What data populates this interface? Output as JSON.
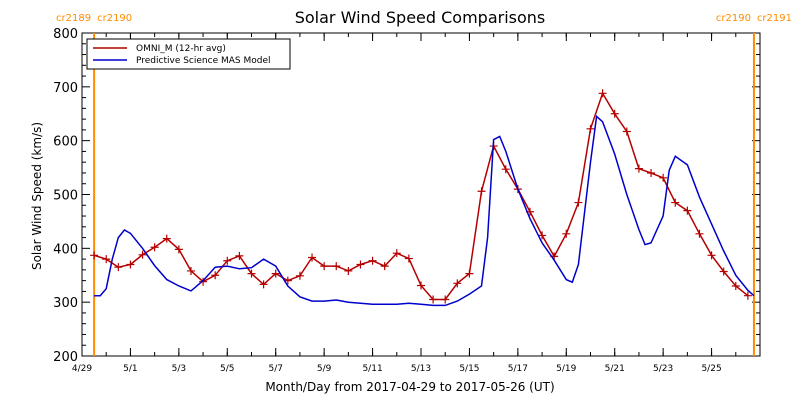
{
  "chart_data": {
    "type": "line",
    "title": "Solar Wind Speed Comparisons",
    "xlabel": "Month/Day from 2017-04-29 to 2017-05-26 (UT)",
    "ylabel": "Solar Wind Speed (km/s)",
    "ylim": [
      200,
      800
    ],
    "xlim": [
      "2017-04-29",
      "2017-05-27"
    ],
    "y_ticks": [
      "200",
      "300",
      "400",
      "500",
      "600",
      "700",
      "800"
    ],
    "x_ticks": [
      {
        "label": "4/29",
        "date": "2017-04-29"
      },
      {
        "label": "5/1",
        "date": "2017-05-01"
      },
      {
        "label": "5/3",
        "date": "2017-05-03"
      },
      {
        "label": "5/5",
        "date": "2017-05-05"
      },
      {
        "label": "5/7",
        "date": "2017-05-07"
      },
      {
        "label": "5/9",
        "date": "2017-05-09"
      },
      {
        "label": "5/11",
        "date": "2017-05-11"
      },
      {
        "label": "5/13",
        "date": "2017-05-13"
      },
      {
        "label": "5/15",
        "date": "2017-05-15"
      },
      {
        "label": "5/17",
        "date": "2017-05-17"
      },
      {
        "label": "5/19",
        "date": "2017-05-19"
      },
      {
        "label": "5/21",
        "date": "2017-05-21"
      },
      {
        "label": "5/23",
        "date": "2017-05-23"
      },
      {
        "label": "5/25",
        "date": "2017-05-25"
      }
    ],
    "legend_position": "top-left",
    "carrington_markers": [
      {
        "date": "2017-04-29 12:00",
        "label_left": "cr2189",
        "label_right": "cr2190"
      },
      {
        "date": "2017-05-26 18:00",
        "label_left": "cr2190",
        "label_right": "cr2191"
      }
    ],
    "series": [
      {
        "name": "OMNI_M (12-hr avg)",
        "color": "#b40000",
        "marker": "plus",
        "points": [
          [
            "2017-04-29 12:00",
            387
          ],
          [
            "2017-04-30 00:00",
            380
          ],
          [
            "2017-04-30 12:00",
            365
          ],
          [
            "2017-05-01 00:00",
            370
          ],
          [
            "2017-05-01 12:00",
            388
          ],
          [
            "2017-05-02 00:00",
            402
          ],
          [
            "2017-05-02 12:00",
            418
          ],
          [
            "2017-05-03 00:00",
            398
          ],
          [
            "2017-05-03 12:00",
            358
          ],
          [
            "2017-05-04 00:00",
            338
          ],
          [
            "2017-05-04 12:00",
            350
          ],
          [
            "2017-05-05 00:00",
            377
          ],
          [
            "2017-05-05 12:00",
            386
          ],
          [
            "2017-05-06 00:00",
            353
          ],
          [
            "2017-05-06 12:00",
            333
          ],
          [
            "2017-05-07 00:00",
            353
          ],
          [
            "2017-05-07 12:00",
            340
          ],
          [
            "2017-05-08 00:00",
            349
          ],
          [
            "2017-05-08 12:00",
            383
          ],
          [
            "2017-05-09 00:00",
            367
          ],
          [
            "2017-05-09 12:00",
            367
          ],
          [
            "2017-05-10 00:00",
            358
          ],
          [
            "2017-05-10 12:00",
            370
          ],
          [
            "2017-05-11 00:00",
            377
          ],
          [
            "2017-05-11 12:00",
            367
          ],
          [
            "2017-05-12 00:00",
            391
          ],
          [
            "2017-05-12 12:00",
            381
          ],
          [
            "2017-05-13 00:00",
            331
          ],
          [
            "2017-05-13 12:00",
            305
          ],
          [
            "2017-05-14 00:00",
            305
          ],
          [
            "2017-05-14 12:00",
            335
          ],
          [
            "2017-05-15 00:00",
            353
          ],
          [
            "2017-05-15 12:00",
            506
          ],
          [
            "2017-05-16 00:00",
            590
          ],
          [
            "2017-05-16 12:00",
            547
          ],
          [
            "2017-05-17 00:00",
            510
          ],
          [
            "2017-05-17 12:00",
            468
          ],
          [
            "2017-05-18 00:00",
            424
          ],
          [
            "2017-05-18 12:00",
            385
          ],
          [
            "2017-05-19 00:00",
            427
          ],
          [
            "2017-05-19 12:00",
            485
          ],
          [
            "2017-05-20 00:00",
            622
          ],
          [
            "2017-05-20 12:00",
            688
          ],
          [
            "2017-05-21 00:00",
            650
          ],
          [
            "2017-05-21 12:00",
            617
          ],
          [
            "2017-05-22 00:00",
            548
          ],
          [
            "2017-05-22 12:00",
            540
          ],
          [
            "2017-05-23 00:00",
            531
          ],
          [
            "2017-05-23 12:00",
            485
          ],
          [
            "2017-05-24 00:00",
            470
          ],
          [
            "2017-05-24 12:00",
            427
          ],
          [
            "2017-05-25 00:00",
            387
          ],
          [
            "2017-05-25 12:00",
            357
          ],
          [
            "2017-05-26 00:00",
            330
          ],
          [
            "2017-05-26 12:00",
            312
          ]
        ]
      },
      {
        "name": "Predictive Science MAS Model",
        "color": "#0000cc",
        "marker": "none",
        "points": [
          [
            "2017-04-29 12:00",
            312
          ],
          [
            "2017-04-29 18:00",
            312
          ],
          [
            "2017-04-30 00:00",
            325
          ],
          [
            "2017-04-30 06:00",
            380
          ],
          [
            "2017-04-30 12:00",
            420
          ],
          [
            "2017-04-30 18:00",
            434
          ],
          [
            "2017-05-01 00:00",
            428
          ],
          [
            "2017-05-01 12:00",
            400
          ],
          [
            "2017-05-02 00:00",
            368
          ],
          [
            "2017-05-02 12:00",
            342
          ],
          [
            "2017-05-03 00:00",
            330
          ],
          [
            "2017-05-03 12:00",
            321
          ],
          [
            "2017-05-04 00:00",
            340
          ],
          [
            "2017-05-04 12:00",
            365
          ],
          [
            "2017-05-05 00:00",
            367
          ],
          [
            "2017-05-05 12:00",
            362
          ],
          [
            "2017-05-06 00:00",
            364
          ],
          [
            "2017-05-06 12:00",
            380
          ],
          [
            "2017-05-07 00:00",
            367
          ],
          [
            "2017-05-07 12:00",
            330
          ],
          [
            "2017-05-08 00:00",
            310
          ],
          [
            "2017-05-08 12:00",
            302
          ],
          [
            "2017-05-09 00:00",
            302
          ],
          [
            "2017-05-09 12:00",
            304
          ],
          [
            "2017-05-10 00:00",
            300
          ],
          [
            "2017-05-10 12:00",
            298
          ],
          [
            "2017-05-11 00:00",
            296
          ],
          [
            "2017-05-11 12:00",
            296
          ],
          [
            "2017-05-12 00:00",
            296
          ],
          [
            "2017-05-12 12:00",
            298
          ],
          [
            "2017-05-13 00:00",
            296
          ],
          [
            "2017-05-13 12:00",
            294
          ],
          [
            "2017-05-14 00:00",
            294
          ],
          [
            "2017-05-14 12:00",
            302
          ],
          [
            "2017-05-15 00:00",
            315
          ],
          [
            "2017-05-15 12:00",
            330
          ],
          [
            "2017-05-15 18:00",
            420
          ],
          [
            "2017-05-16 00:00",
            602
          ],
          [
            "2017-05-16 06:00",
            608
          ],
          [
            "2017-05-16 12:00",
            580
          ],
          [
            "2017-05-17 00:00",
            510
          ],
          [
            "2017-05-17 12:00",
            455
          ],
          [
            "2017-05-18 00:00",
            410
          ],
          [
            "2017-05-18 12:00",
            378
          ],
          [
            "2017-05-19 00:00",
            342
          ],
          [
            "2017-05-19 06:00",
            337
          ],
          [
            "2017-05-19 12:00",
            370
          ],
          [
            "2017-05-20 00:00",
            560
          ],
          [
            "2017-05-20 06:00",
            645
          ],
          [
            "2017-05-20 12:00",
            635
          ],
          [
            "2017-05-21 00:00",
            575
          ],
          [
            "2017-05-21 12:00",
            500
          ],
          [
            "2017-05-22 00:00",
            435
          ],
          [
            "2017-05-22 06:00",
            407
          ],
          [
            "2017-05-22 12:00",
            410
          ],
          [
            "2017-05-23 00:00",
            460
          ],
          [
            "2017-05-23 06:00",
            545
          ],
          [
            "2017-05-23 12:00",
            571
          ],
          [
            "2017-05-24 00:00",
            555
          ],
          [
            "2017-05-24 12:00",
            495
          ],
          [
            "2017-05-25 00:00",
            445
          ],
          [
            "2017-05-25 12:00",
            395
          ],
          [
            "2017-05-26 00:00",
            350
          ],
          [
            "2017-05-26 12:00",
            322
          ],
          [
            "2017-05-26 18:00",
            312
          ]
        ]
      }
    ]
  }
}
